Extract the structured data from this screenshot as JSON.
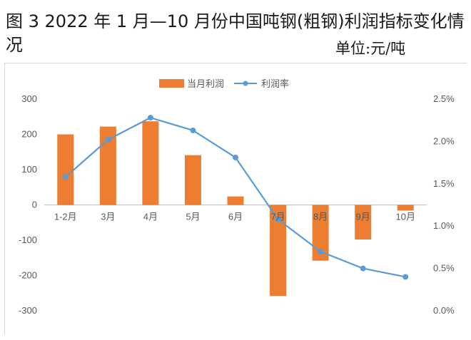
{
  "figure": {
    "title": "图 3 2022 年 1 月—10 月份中国吨钢(粗钢)利润指标变化情况",
    "unit_label": "单位:元/吨"
  },
  "chart_data": {
    "type": "bar",
    "categories": [
      "1-2月",
      "3月",
      "4月",
      "5月",
      "6月",
      "7月",
      "8月",
      "9月",
      "10月"
    ],
    "series": [
      {
        "name": "当月利润",
        "type": "bar",
        "axis": "left",
        "color": "#ed7d31",
        "values": [
          200,
          222,
          237,
          141,
          24,
          -258,
          -158,
          -98,
          -16
        ]
      },
      {
        "name": "利润率",
        "type": "line",
        "axis": "right",
        "color": "#5b9bd5",
        "values": [
          1.58,
          2.02,
          2.28,
          2.13,
          1.81,
          1.08,
          0.7,
          0.5,
          0.4
        ]
      }
    ],
    "ylim_left": [
      -300,
      300
    ],
    "yticks_left": [
      "300",
      "200",
      "100",
      "0",
      "-100",
      "-200",
      "-300"
    ],
    "ylim_right": [
      0,
      2.5
    ],
    "yticks_right": [
      "2.5%",
      "2.0%",
      "1.5%",
      "1.0%",
      "0.5%",
      "0.0%"
    ],
    "legend_position": "top-center",
    "grid": false
  }
}
